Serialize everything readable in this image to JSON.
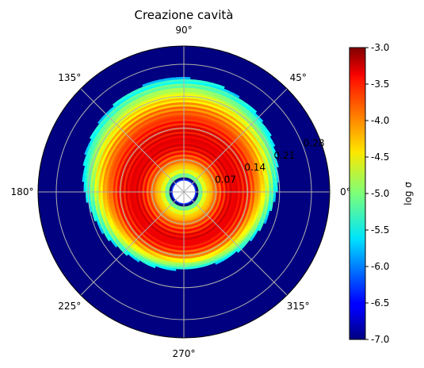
{
  "chart_data": {
    "type": "heatmap",
    "projection": "polar",
    "title": "Creazione cavità",
    "angular_ticks": [
      "0°",
      "45°",
      "90°",
      "135°",
      "180°",
      "225°",
      "270°",
      "315°"
    ],
    "angular_tick_values": [
      0,
      45,
      90,
      135,
      180,
      225,
      270,
      315
    ],
    "radial_ticks": [
      "0.07",
      "0.14",
      "0.21",
      "0.28"
    ],
    "radial_tick_values": [
      0.07,
      0.14,
      0.21,
      0.28
    ],
    "radial_range": [
      0,
      0.32
    ],
    "radial_tick_label_angle_deg": 22.5,
    "grid": true,
    "background_value": -7.0,
    "inner_hole_radius": 0.026,
    "disk": {
      "inner_radius": 0.032,
      "peak_radius": 0.1,
      "peak_value": -3.4,
      "outer_radius_min": 0.17,
      "outer_radius_max": 0.25,
      "outer_radius_max_angle_deg": 100,
      "ring_spacing": 0.01
    },
    "colorbar": {
      "label": "log σ",
      "colormap": "jet",
      "min": -7.0,
      "max": -3.0,
      "ticks": [
        "-3.0",
        "-3.5",
        "-4.0",
        "-4.5",
        "-5.0",
        "-5.5",
        "-6.0",
        "-6.5",
        "-7.0"
      ],
      "tick_values": [
        -3.0,
        -3.5,
        -4.0,
        -4.5,
        -5.0,
        -5.5,
        -6.0,
        -6.5,
        -7.0
      ]
    }
  }
}
